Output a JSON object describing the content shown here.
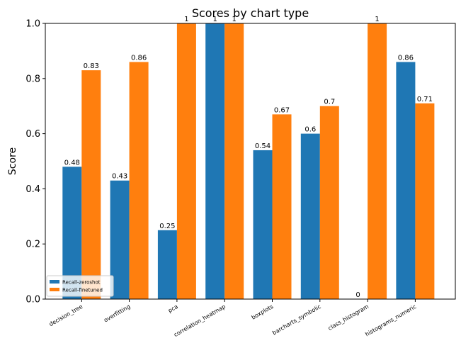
{
  "chart_data": {
    "type": "bar",
    "title": "Scores by chart type",
    "xlabel": "",
    "ylabel": "Score",
    "ylim": [
      0,
      1.0
    ],
    "yticks": [
      "0.0",
      "0.2",
      "0.4",
      "0.6",
      "0.8",
      "1.0"
    ],
    "grid": false,
    "legend_position": "bottom-left",
    "categories": [
      "decision_tree",
      "overfitting",
      "pca",
      "correlation_heatmap",
      "boxplots",
      "barcharts_symbolic",
      "class_histogram",
      "histograms_numeric"
    ],
    "series": [
      {
        "name": "Recall-zeroshot",
        "color": "#1f77b4",
        "values": [
          0.48,
          0.43,
          0.25,
          1,
          0.54,
          0.6,
          0,
          0.86
        ],
        "labels": [
          "0.48",
          "0.43",
          "0.25",
          "1",
          "0.54",
          "0.6",
          "0",
          "0.86"
        ]
      },
      {
        "name": "Recall-finetuned",
        "color": "#ff7f0e",
        "values": [
          0.83,
          0.86,
          1,
          1,
          0.67,
          0.7,
          1,
          0.71
        ],
        "labels": [
          "0.83",
          "0.86",
          "1",
          "1",
          "0.67",
          "0.7",
          "1",
          "0.71"
        ]
      }
    ]
  }
}
